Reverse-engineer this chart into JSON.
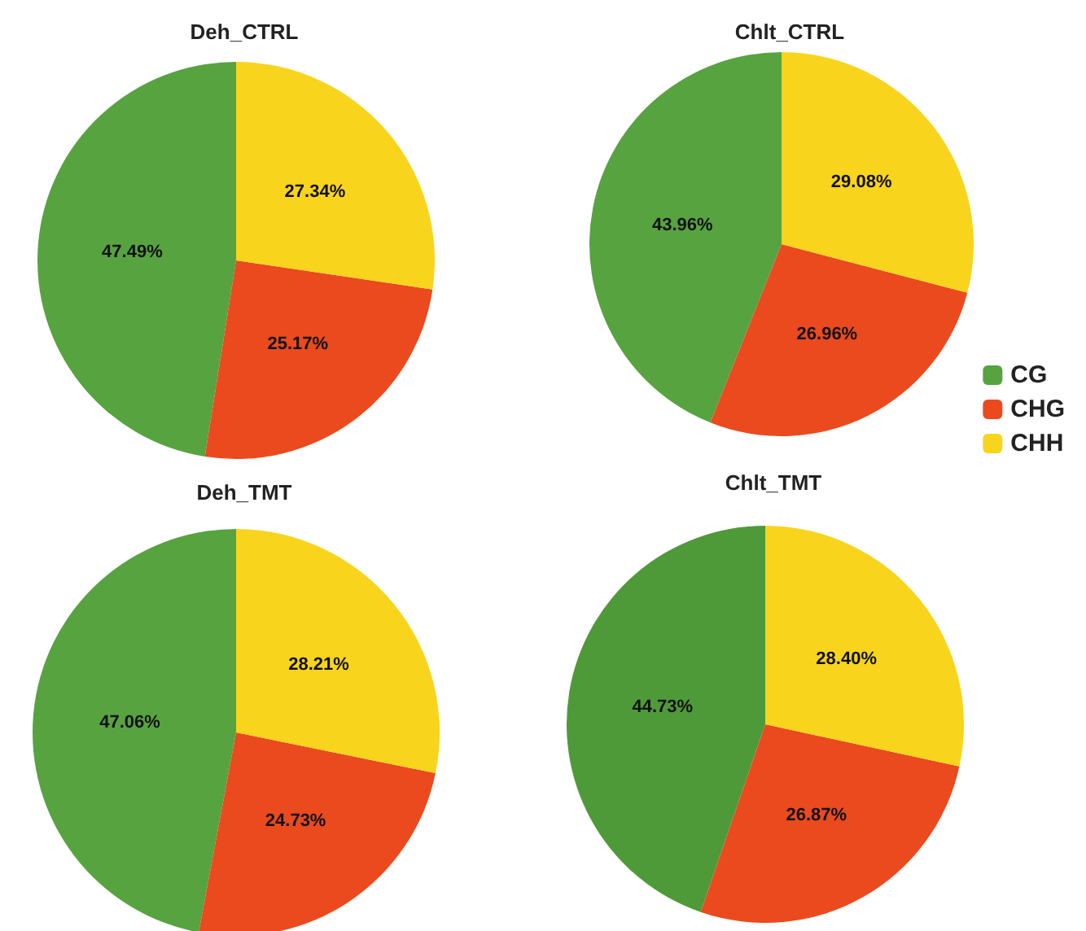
{
  "chart_data": [
    {
      "type": "pie",
      "title": "Deh_CTRL",
      "categories": [
        null,
        null,
        null
      ],
      "values": [
        47.49,
        25.17,
        27.34
      ],
      "value_labels": [
        "47.49%",
        "25.17%",
        "27.34%"
      ],
      "colors": [
        "#57a340",
        "#ea4a1e",
        "#f9d41c"
      ],
      "legend": false
    },
    {
      "type": "pie",
      "title": "Chlt_CTRL",
      "categories": [
        "CG",
        "CHG",
        "CHH"
      ],
      "values": [
        43.96,
        26.96,
        29.08
      ],
      "value_labels": [
        "43.96%",
        "26.96%",
        "29.08%"
      ],
      "colors": [
        "#57a340",
        "#ea4a1e",
        "#f9d41c"
      ],
      "legend": "bottom right"
    },
    {
      "type": "pie",
      "title": "Deh_TMT",
      "categories": [
        null,
        null,
        null
      ],
      "values": [
        47.06,
        24.73,
        28.21
      ],
      "value_labels": [
        "47.06%",
        "24.73%",
        "28.21%"
      ],
      "colors": [
        "#57a340",
        "#ea4a1e",
        "#f9d41c"
      ],
      "legend": false
    },
    {
      "type": "pie",
      "title": "Chlt_TMT",
      "categories": [
        null,
        null,
        null
      ],
      "values": [
        44.73,
        26.87,
        28.4
      ],
      "value_labels": [
        "44.73%",
        "26.87%",
        "28.40%"
      ],
      "colors": [
        "#4f9a38",
        "#ea4a1e",
        "#f9d41c"
      ],
      "legend": false
    }
  ]
}
